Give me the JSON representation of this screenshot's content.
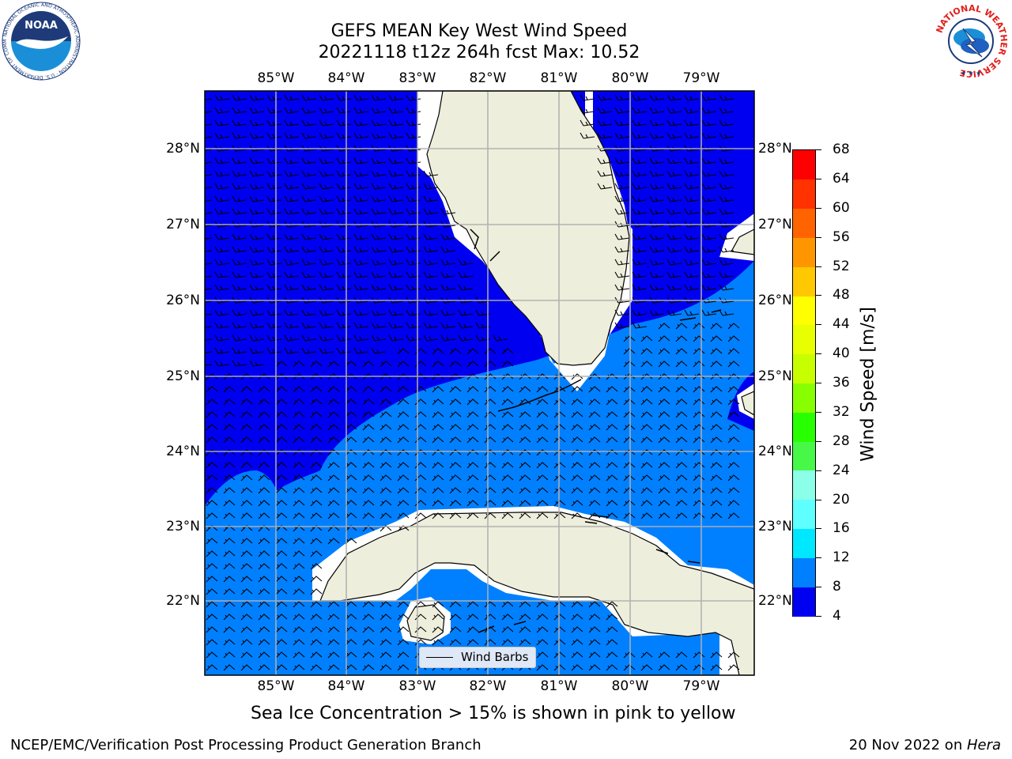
{
  "title_line1": "GEFS MEAN Key West Wind Speed",
  "title_line2": "20221118 t12z 264h fcst   Max: 10.52",
  "lon_labels": [
    "85°W",
    "84°W",
    "83°W",
    "82°W",
    "81°W",
    "80°W",
    "79°W"
  ],
  "lat_labels": [
    "28°N",
    "27°N",
    "26°N",
    "25°N",
    "24°N",
    "23°N",
    "22°N"
  ],
  "colorbar": {
    "label": "Wind Speed [m/s]",
    "ticks": [
      "4",
      "8",
      "12",
      "16",
      "20",
      "24",
      "28",
      "32",
      "36",
      "40",
      "44",
      "48",
      "52",
      "56",
      "60",
      "64",
      "68"
    ],
    "colors": [
      "#0000f0",
      "#0080ff",
      "#00e8ff",
      "#60ffff",
      "#8cffe8",
      "#48f848",
      "#28ff00",
      "#88ff00",
      "#c8ff00",
      "#e8ff00",
      "#ffff00",
      "#ffc800",
      "#ff9600",
      "#ff6400",
      "#ff3200",
      "#ff0000"
    ]
  },
  "legend_label": "Wind Barbs",
  "caption": "Sea Ice Concentration > 15% is shown in pink to yellow",
  "footer_left": "NCEP/EMC/Verification Post Processing Product Generation Branch",
  "footer_right_date": "20 Nov 2022 on ",
  "footer_right_host": "Hera",
  "noaa_logo_text": "NOAA",
  "noaa_ring_text": "NATIONAL OCEANIC AND ATMOSPHERIC ADMINISTRATION · U.S. DEPARTMENT OF COMMERCE",
  "nws_ring_text": "NATIONAL WEATHER SERVICE",
  "map_colors": {
    "band_4_8": "#0000f0",
    "band_8_12": "#0080ff",
    "land": "#eeeedc",
    "grid": "#b0b0b0"
  }
}
